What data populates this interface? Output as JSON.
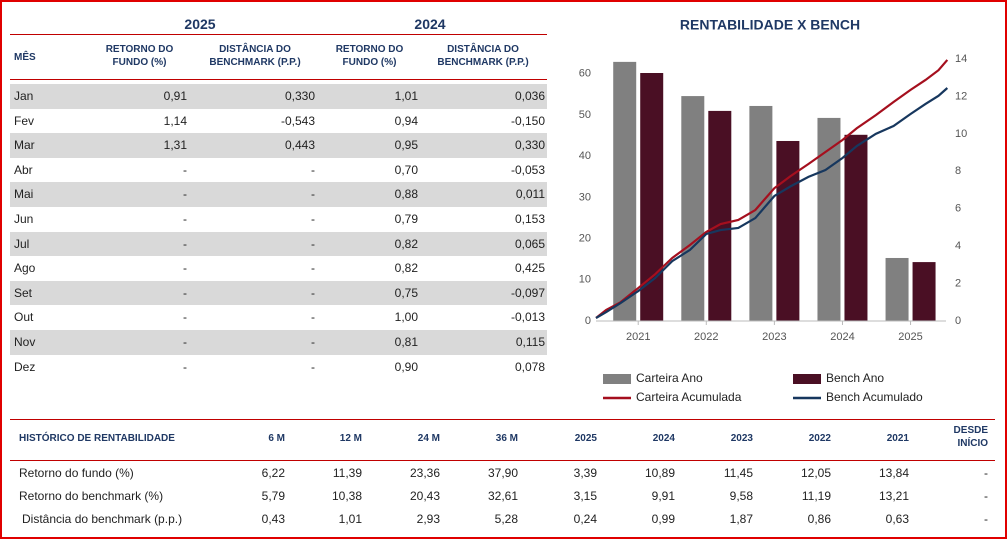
{
  "monthly_returns": {
    "year_headers": [
      "2025",
      "2024"
    ],
    "columns": [
      "MÊS",
      "RETORNO DO FUNDO (%)",
      "DISTÂNCIA DO BENCHMARK (P.P.)",
      "RETORNO DO FUNDO (%)",
      "DISTÂNCIA DO BENCHMARK (P.P.)"
    ],
    "rows": [
      [
        "Jan",
        "0,91",
        "0,330",
        "1,01",
        "0,036"
      ],
      [
        "Fev",
        "1,14",
        "-0,543",
        "0,94",
        "-0,150"
      ],
      [
        "Mar",
        "1,31",
        "0,443",
        "0,95",
        "0,330"
      ],
      [
        "Abr",
        "-",
        "-",
        "0,70",
        "-0,053"
      ],
      [
        "Mai",
        "-",
        "-",
        "0,88",
        "0,011"
      ],
      [
        "Jun",
        "-",
        "-",
        "0,79",
        "0,153"
      ],
      [
        "Jul",
        "-",
        "-",
        "0,82",
        "0,065"
      ],
      [
        "Ago",
        "-",
        "-",
        "0,82",
        "0,425"
      ],
      [
        "Set",
        "-",
        "-",
        "0,75",
        "-0,097"
      ],
      [
        "Out",
        "-",
        "-",
        "1,00",
        "-0,013"
      ],
      [
        "Nov",
        "-",
        "-",
        "0,81",
        "0,115"
      ],
      [
        "Dez",
        "-",
        "-",
        "0,90",
        "0,078"
      ]
    ]
  },
  "chart_data": {
    "type": "bar",
    "title": "RENTABILIDADE X BENCH",
    "x": [
      2021,
      2022,
      2023,
      2024,
      2025
    ],
    "xlim": [
      2020.38,
      2025.55
    ],
    "xticks": [
      2021,
      2022,
      2023,
      2024,
      2025
    ],
    "ylim": [
      0,
      63.6
    ],
    "yticks": [
      0,
      10,
      20,
      30,
      40,
      50,
      60
    ],
    "y2lim": [
      0,
      14
    ],
    "y2ticks": [
      0,
      2,
      4,
      6,
      8,
      10,
      12,
      14
    ],
    "series": [
      {
        "name": "Carteira Ano",
        "type": "bar",
        "color": "#808080",
        "values": [
          62.9,
          54.6,
          52.2,
          49.3,
          15.3
        ]
      },
      {
        "name": "Bench Ano",
        "type": "bar",
        "color": "#4a0f24",
        "values": [
          60.2,
          51.0,
          43.7,
          45.2,
          14.3
        ]
      },
      {
        "name": "Carteira Acumulada",
        "type": "line",
        "axis": "y2",
        "color": "#a50f1e",
        "x": [
          2020.38,
          2020.53,
          2020.74,
          2021,
          2021.25,
          2021.5,
          2021.76,
          2022,
          2022.21,
          2022.47,
          2022.72,
          2023,
          2023.24,
          2023.5,
          2023.75,
          2024,
          2024.21,
          2024.49,
          2024.75,
          2025,
          2025.22,
          2025.41,
          2025.54
        ],
        "values": [
          0.16,
          0.59,
          1.0,
          1.76,
          2.5,
          3.37,
          4.06,
          4.76,
          5.18,
          5.4,
          5.93,
          7.1,
          7.75,
          8.39,
          9.03,
          9.67,
          10.3,
          11.0,
          11.7,
          12.35,
          12.88,
          13.4,
          13.95
        ]
      },
      {
        "name": "Bench Acumulado",
        "type": "line",
        "axis": "y2",
        "color": "#17375e",
        "x": [
          2020.38,
          2020.53,
          2020.74,
          2021,
          2021.25,
          2021.5,
          2021.76,
          2022,
          2022.21,
          2022.47,
          2022.72,
          2023,
          2023.24,
          2023.5,
          2023.75,
          2024,
          2024.21,
          2024.49,
          2024.75,
          2025,
          2025.22,
          2025.41,
          2025.54
        ],
        "values": [
          0.16,
          0.48,
          0.96,
          1.6,
          2.3,
          3.2,
          3.8,
          4.65,
          4.86,
          4.97,
          5.5,
          6.68,
          7.2,
          7.7,
          8.07,
          8.71,
          9.35,
          10.0,
          10.42,
          11.06,
          11.6,
          12.03,
          12.45
        ]
      }
    ]
  },
  "history": {
    "columns": [
      "HISTÓRICO DE RENTABILIDADE",
      "6 M",
      "12 M",
      "24 M",
      "36 M",
      "2025",
      "2024",
      "2023",
      "2022",
      "2021",
      "DESDE INÍCIO"
    ],
    "rows": [
      [
        "Retorno do fundo (%)",
        "6,22",
        "11,39",
        "23,36",
        "37,90",
        "3,39",
        "10,89",
        "11,45",
        "12,05",
        "13,84",
        "-"
      ],
      [
        "Retorno do benchmark (%)",
        "5,79",
        "10,38",
        "20,43",
        "32,61",
        "3,15",
        "9,91",
        "9,58",
        "11,19",
        "13,21",
        "-"
      ],
      [
        "Distância do benchmark (p.p.)",
        "0,43",
        "1,01",
        "2,93",
        "5,28",
        "0,24",
        "0,99",
        "1,87",
        "0,86",
        "0,63",
        "-"
      ]
    ]
  }
}
